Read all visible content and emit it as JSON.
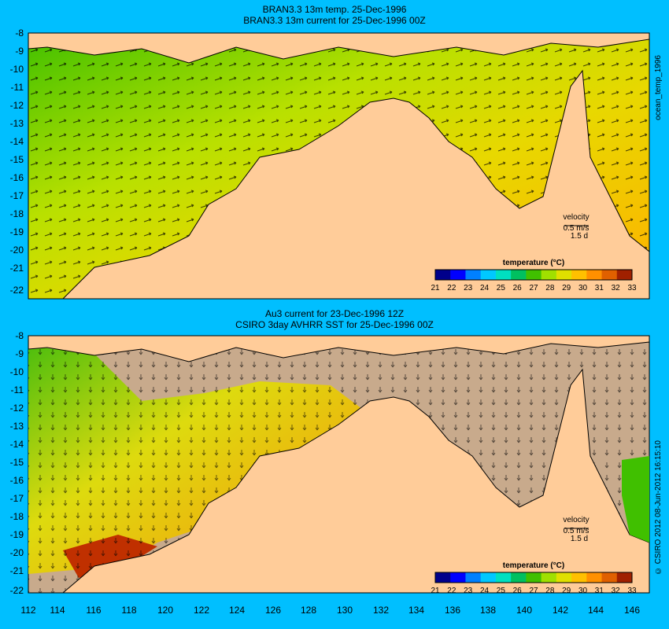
{
  "top_panel": {
    "title_line1": "BRAN3.3 13m temp. 25-Dec-1996",
    "title_line2": "BRAN3.3 13m current for 25-Dec-1996 00Z",
    "side_label": "ocean_temp_1996",
    "velocity_label": "velocity",
    "velocity_scale": "0.5 m/s",
    "velocity_period": "1.5 d"
  },
  "bottom_panel": {
    "title_line1": "Au3 current for 23-Dec-1996 12Z",
    "title_line2": "CSIRO 3day AVHRR SST for 25-Dec-1996 00Z",
    "side_label": "© CSIRO 2012  08-Jun-2012 16:15:10",
    "velocity_label": "velocity",
    "velocity_scale": "0.5 m/s",
    "velocity_period": "1.5 d"
  },
  "legend": {
    "title": "temperature (°C)",
    "ticks": [
      "21",
      "22",
      "23",
      "24",
      "25",
      "26",
      "27",
      "28",
      "29",
      "30",
      "31",
      "32",
      "33"
    ]
  },
  "axes": {
    "y_labels": [
      "-8",
      "-9",
      "-10",
      "-11",
      "-12",
      "-13",
      "-14",
      "-15",
      "-16",
      "-17",
      "-18",
      "-19",
      "-20",
      "-21",
      "-22"
    ],
    "x_labels": [
      "112",
      "114",
      "116",
      "118",
      "120",
      "122",
      "124",
      "126",
      "128",
      "130",
      "132",
      "134",
      "136",
      "138",
      "140",
      "142",
      "144",
      "146"
    ]
  },
  "colors": {
    "background": "#00bfff",
    "land": "#ffcc99",
    "no_data": "#c8aa8c",
    "colormap": [
      "#00008b",
      "#0000ff",
      "#0080ff",
      "#00c8ff",
      "#00e0c0",
      "#00c060",
      "#40c000",
      "#a0e000",
      "#e0e000",
      "#ffc000",
      "#ff9000",
      "#e06000",
      "#a02000"
    ]
  }
}
